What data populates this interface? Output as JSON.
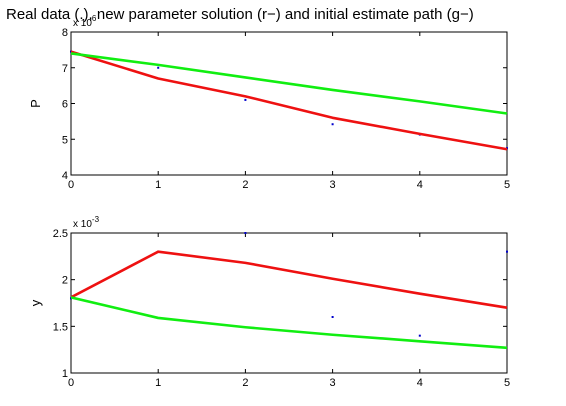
{
  "chart_data": [
    {
      "type": "line",
      "title": "Real data (.), new parameter solution (r−) and initial estimate path (g−)",
      "xlabel": "",
      "ylabel": "P",
      "multiplier": "x 10",
      "multiplier_exponent": "6",
      "xlim": [
        0,
        5
      ],
      "ylim": [
        4,
        8
      ],
      "xticks": [
        0,
        1,
        2,
        3,
        4,
        5
      ],
      "yticks": [
        4,
        5,
        6,
        7,
        8
      ],
      "grid": false,
      "series": [
        {
          "kind": "points",
          "color": "#0000cc",
          "x": [
            0,
            1,
            2,
            3,
            4,
            5
          ],
          "y": [
            7.45,
            7.0,
            6.1,
            5.42,
            5.13,
            4.75
          ]
        },
        {
          "kind": "line",
          "color": "#ee1111",
          "x": [
            0,
            1,
            2,
            3,
            4,
            5
          ],
          "y": [
            7.45,
            6.7,
            6.2,
            5.6,
            5.15,
            4.72
          ]
        },
        {
          "kind": "line",
          "color": "#11ee11",
          "x": [
            0,
            1,
            2,
            3,
            4,
            5
          ],
          "y": [
            7.4,
            7.08,
            6.73,
            6.38,
            6.06,
            5.72
          ]
        }
      ]
    },
    {
      "type": "line",
      "title": "",
      "xlabel": "",
      "ylabel": "y",
      "multiplier": "x 10",
      "multiplier_exponent": "-3",
      "xlim": [
        0,
        5
      ],
      "ylim": [
        1,
        2.5
      ],
      "xticks": [
        0,
        1,
        2,
        3,
        4,
        5
      ],
      "yticks": [
        1,
        1.5,
        2,
        2.5
      ],
      "grid": false,
      "series": [
        {
          "kind": "points",
          "color": "#0000cc",
          "x": [
            0,
            1,
            2,
            3,
            4,
            5
          ],
          "y": [
            1.8,
            2.3,
            2.5,
            1.6,
            1.4,
            2.3
          ]
        },
        {
          "kind": "line",
          "color": "#ee1111",
          "x": [
            0,
            1,
            2,
            3,
            4,
            5
          ],
          "y": [
            1.81,
            2.3,
            2.18,
            2.01,
            1.85,
            1.7
          ]
        },
        {
          "kind": "line",
          "color": "#11ee11",
          "x": [
            0,
            1,
            2,
            3,
            4,
            5
          ],
          "y": [
            1.81,
            1.59,
            1.49,
            1.41,
            1.34,
            1.27
          ]
        }
      ]
    }
  ]
}
